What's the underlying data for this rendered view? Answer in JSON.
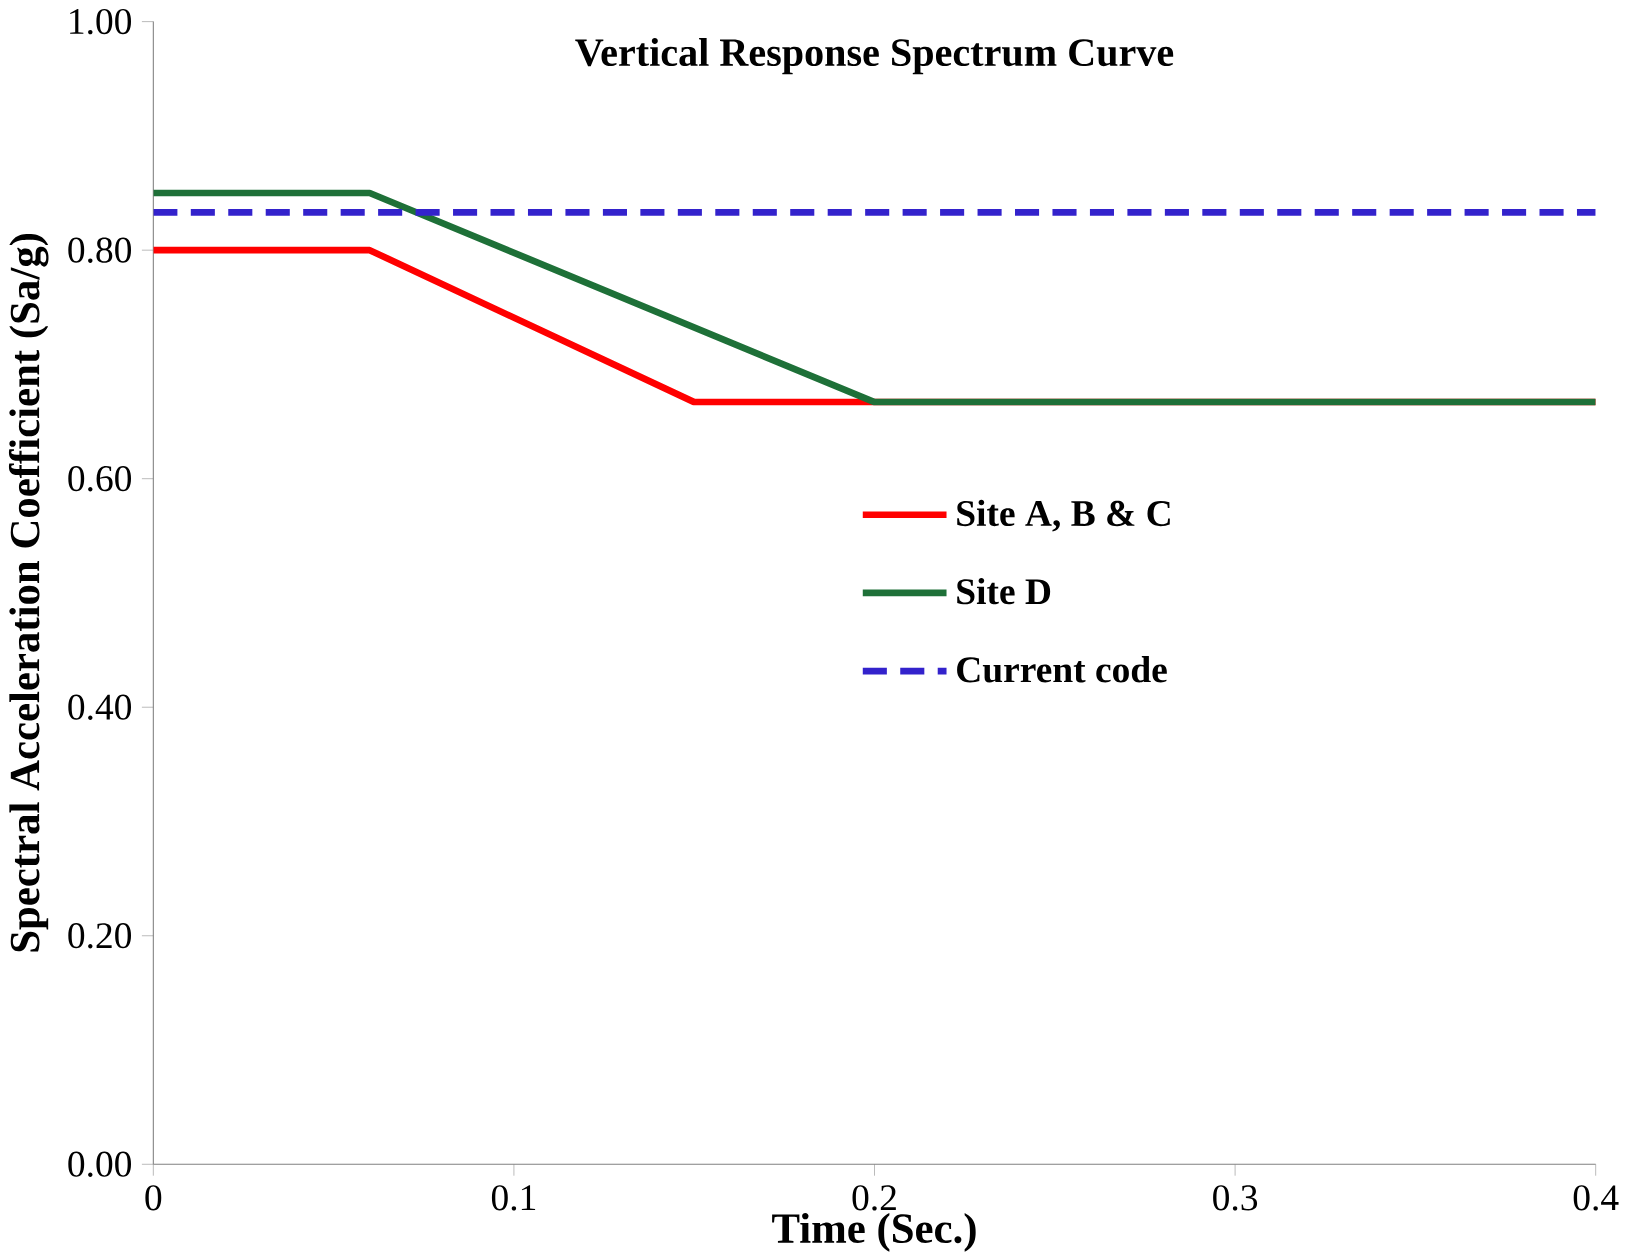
{
  "chart_data": {
    "type": "line",
    "title": "Vertical Response Spectrum Curve",
    "xlabel": "Time (Sec.)",
    "ylabel": "Spectral Acceleration Coefficient  (Sa/g)",
    "series": [
      {
        "name": "Site A, B & C",
        "color": "#ff0000",
        "x": [
          0,
          0.06,
          0.15,
          0.4
        ],
        "values": [
          0.8,
          0.8,
          0.667,
          0.667
        ]
      },
      {
        "name": "Site D",
        "color": "#1e7038",
        "x": [
          0,
          0.06,
          0.2,
          0.4
        ],
        "values": [
          0.85,
          0.85,
          0.667,
          0.667
        ]
      },
      {
        "name": "Current code",
        "color": "#3322cc",
        "line_style": "dashed",
        "x": [
          0,
          0.4
        ],
        "values": [
          0.833,
          0.833
        ]
      }
    ],
    "xlim": [
      0,
      0.4
    ],
    "ylim": [
      0,
      1
    ],
    "xticks": [
      0,
      0.1,
      0.2,
      0.3,
      0.4
    ],
    "yticks": [
      {
        "value": 0,
        "label": "0.00"
      },
      {
        "value": 0.2,
        "label": "0.20"
      },
      {
        "value": 0.4,
        "label": "0.40"
      },
      {
        "value": 0.6,
        "label": "0.60"
      },
      {
        "value": 0.8,
        "label": "0.80"
      },
      {
        "value": 1,
        "label": "1.00"
      }
    ],
    "grid": false,
    "legend": "right",
    "line_style": "solid",
    "marker": "none"
  }
}
